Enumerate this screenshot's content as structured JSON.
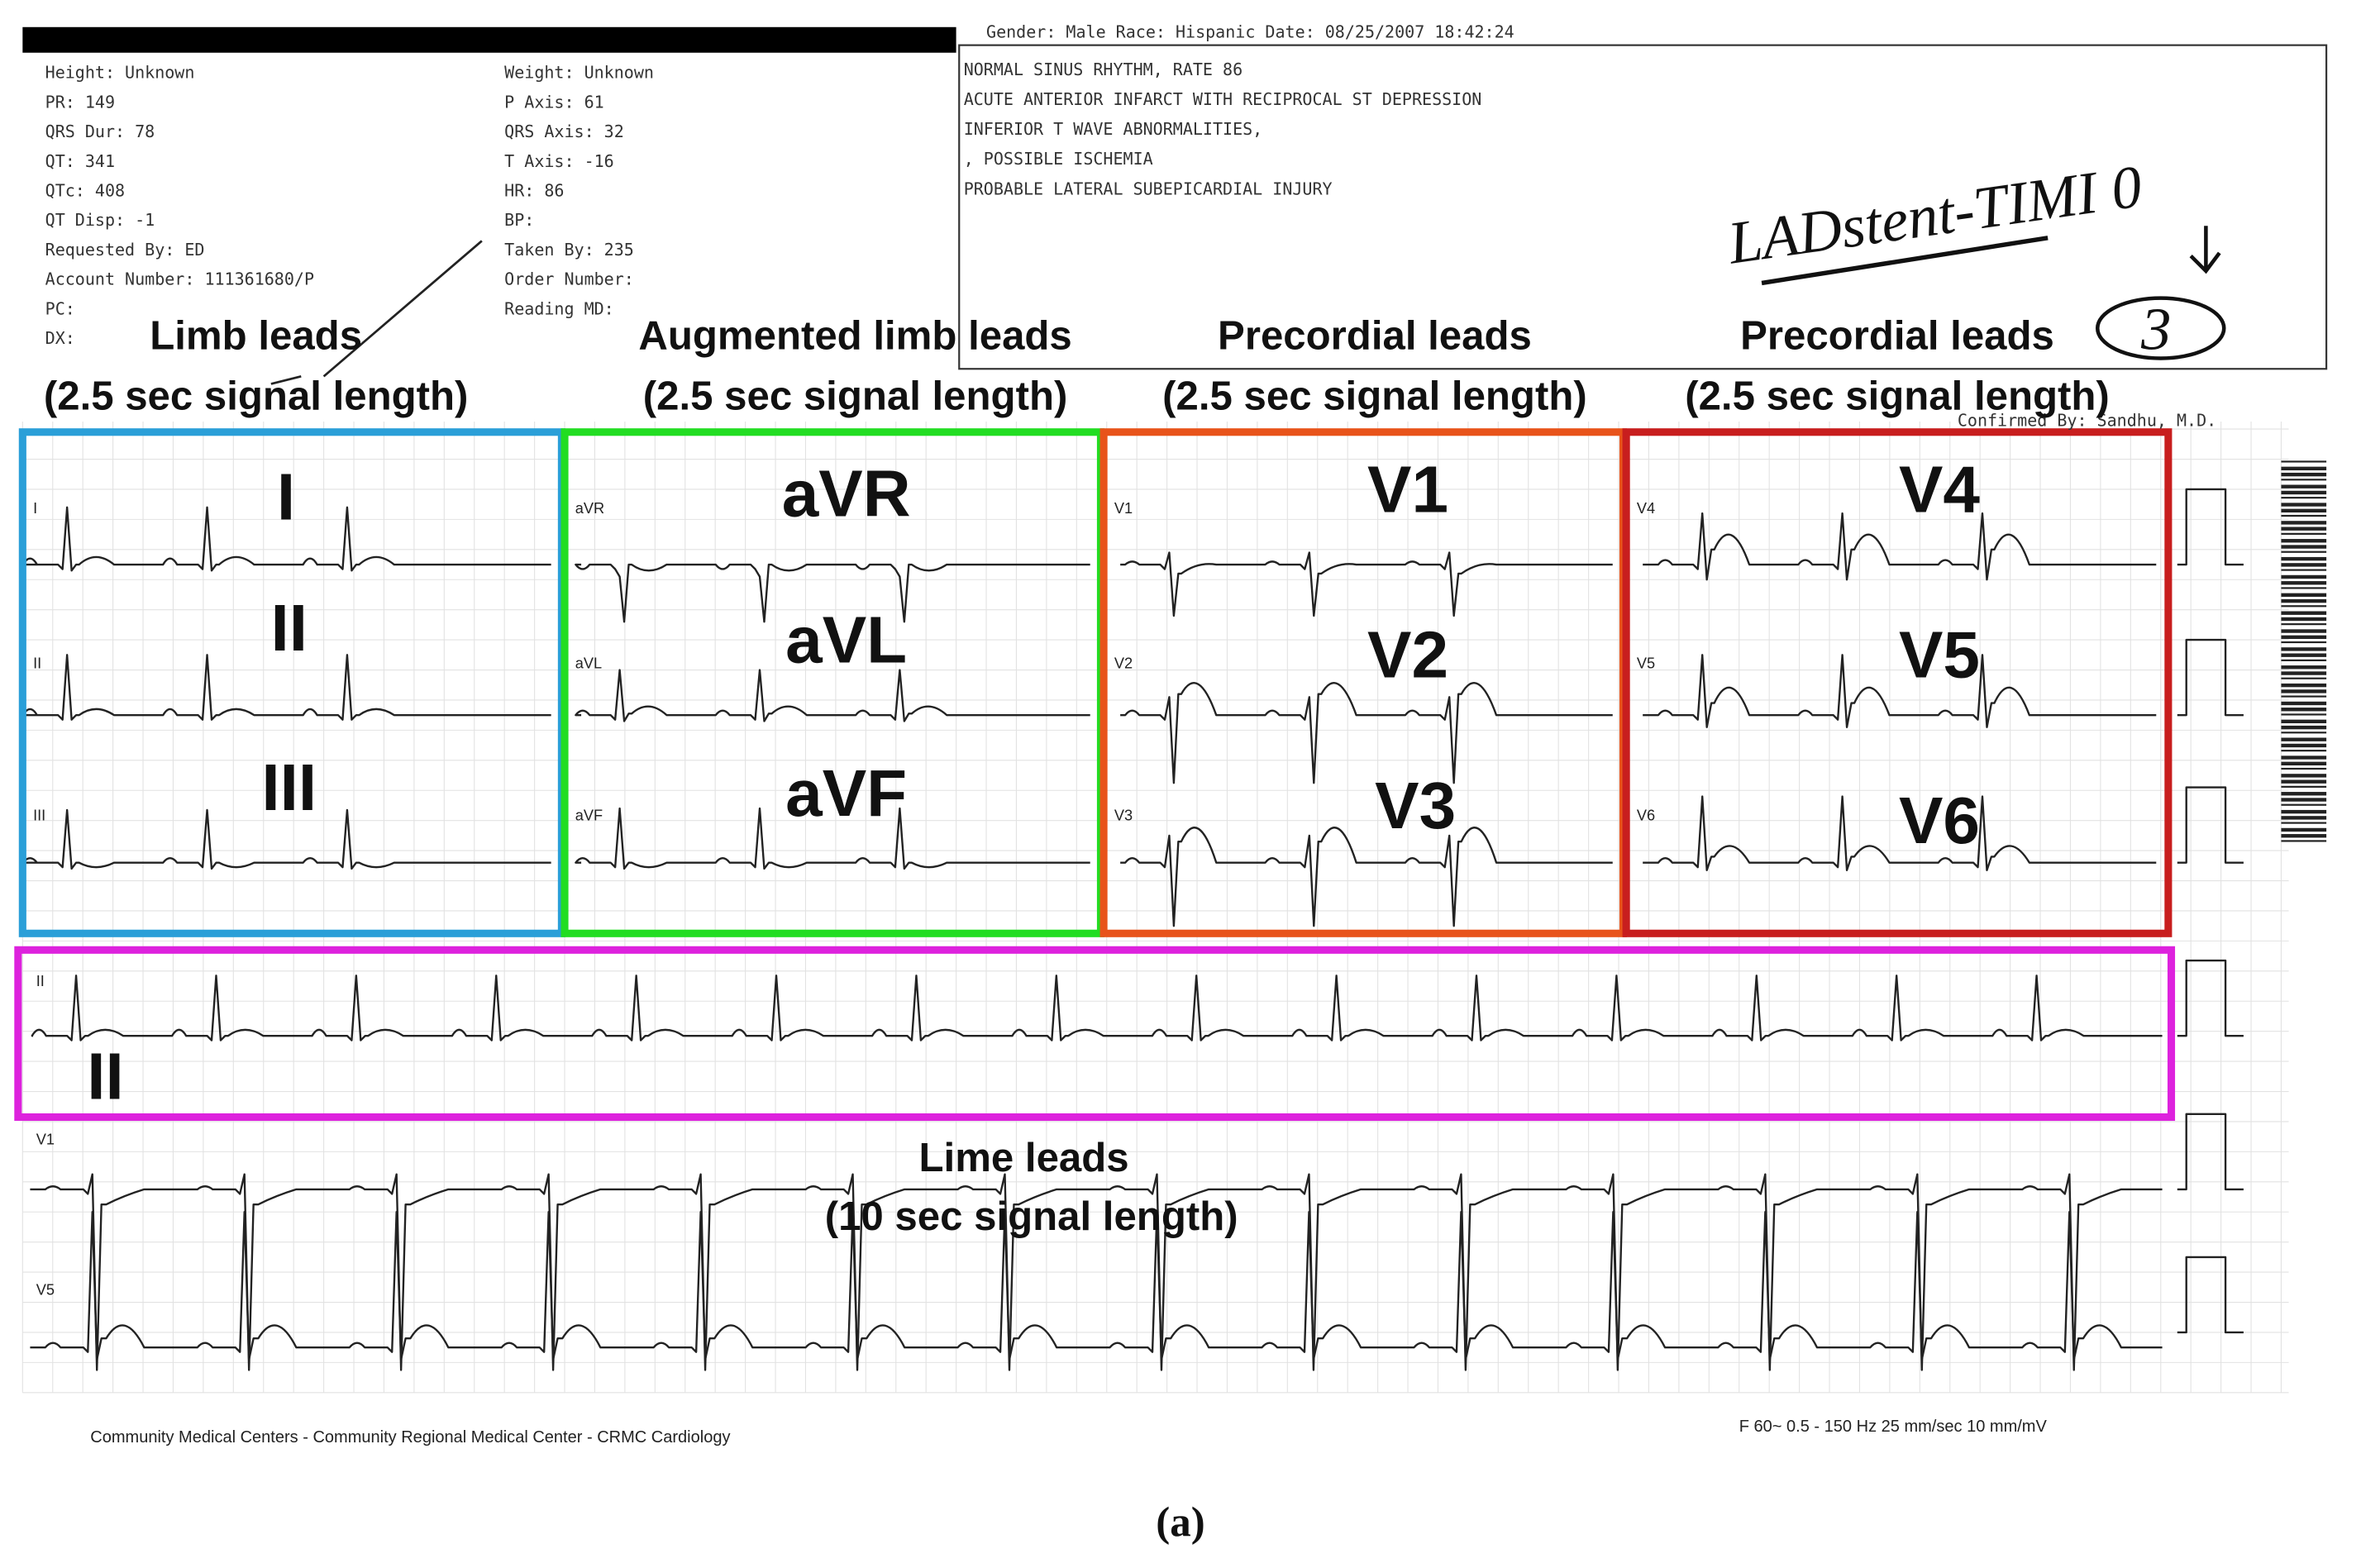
{
  "header": {
    "demographics": "Gender: Male  Race: Hispanic  Date: 08/25/2007 18:42:24",
    "confirmed_by": "Confirmed By: Sandhu, M.D."
  },
  "measurements_left": [
    "Height: Unknown",
    "PR: 149",
    "QRS Dur: 78",
    "QT: 341",
    "QTc: 408",
    "QT Disp: -1",
    "Requested By: ED",
    "Account Number: 111361680/P",
    "PC:",
    "DX:"
  ],
  "measurements_right": [
    "Weight: Unknown",
    "P Axis: 61",
    "QRS Axis: 32",
    "T Axis: -16",
    "HR: 86",
    "BP:",
    "Taken By: 235",
    "Order Number:",
    "Reading MD:"
  ],
  "interpretation": [
    "NORMAL SINUS RHYTHM, RATE 86",
    "ACUTE ANTERIOR INFARCT WITH RECIPROCAL ST DEPRESSION",
    "INFERIOR T WAVE ABNORMALITIES,",
    ", POSSIBLE ISCHEMIA",
    "PROBABLE LATERAL SUBEPICARDIAL INJURY"
  ],
  "handwritten": {
    "note": "LADstent-TIMI 0",
    "number": "3"
  },
  "sections": [
    {
      "title": "Limb leads",
      "subtitle": "(2.5 sec signal length)",
      "leads": [
        "I",
        "II",
        "III"
      ],
      "tags": [
        "I",
        "II",
        "III"
      ]
    },
    {
      "title": "Augmented limb leads",
      "subtitle": "(2.5 sec signal length)",
      "leads": [
        "aVR",
        "aVL",
        "aVF"
      ],
      "tags": [
        "aVR",
        "aVL",
        "aVF"
      ]
    },
    {
      "title": "Precordial leads",
      "subtitle": "(2.5 sec signal length)",
      "leads": [
        "V1",
        "V2",
        "V3"
      ],
      "tags": [
        "V1",
        "V2",
        "V3"
      ]
    },
    {
      "title": "Precordial leads",
      "subtitle": "(2.5 sec signal length)",
      "leads": [
        "V4",
        "V5",
        "V6"
      ],
      "tags": [
        "V4",
        "V5",
        "V6"
      ]
    }
  ],
  "rhythm": {
    "lead": "II",
    "tag": "II"
  },
  "long_leads": {
    "title": "Lime leads",
    "subtitle": "(10 sec signal length)",
    "tags": [
      "V1",
      "V5"
    ]
  },
  "footer": {
    "institution": "Community Medical Centers - Community Regional Medical Center - CRMC Cardiology",
    "filter": "F 60~ 0.5 - 150 Hz   25 mm/sec   10 mm/mV"
  },
  "caption": "(a)"
}
